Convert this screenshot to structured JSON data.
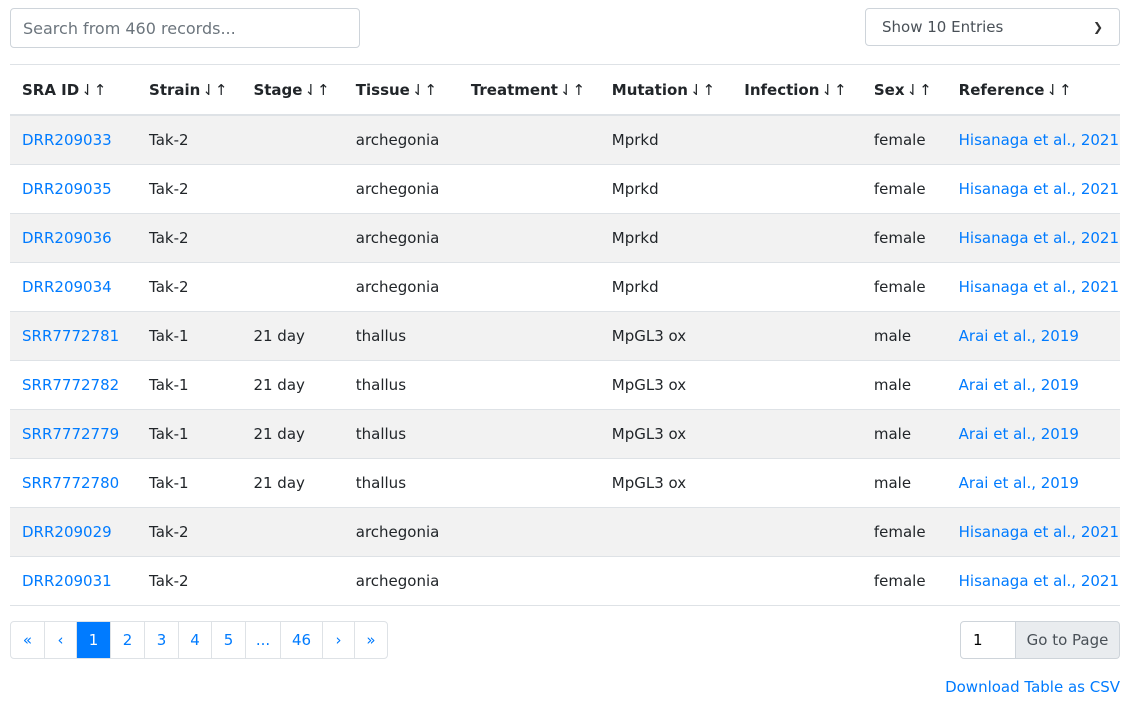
{
  "search": {
    "placeholder": "Search from 460 records..."
  },
  "entries_select": {
    "value": "Show 10 Entries"
  },
  "table": {
    "columns": [
      "SRA ID",
      "Strain",
      "Stage",
      "Tissue",
      "Treatment",
      "Mutation",
      "Infection",
      "Sex",
      "Reference"
    ],
    "sort_icon": "⇃↑",
    "rows": [
      [
        "DRR209033",
        "Tak-2",
        "",
        "archegonia",
        "",
        "Mprkd",
        "",
        "female",
        "Hisanaga et al., 2021"
      ],
      [
        "DRR209035",
        "Tak-2",
        "",
        "archegonia",
        "",
        "Mprkd",
        "",
        "female",
        "Hisanaga et al., 2021"
      ],
      [
        "DRR209036",
        "Tak-2",
        "",
        "archegonia",
        "",
        "Mprkd",
        "",
        "female",
        "Hisanaga et al., 2021"
      ],
      [
        "DRR209034",
        "Tak-2",
        "",
        "archegonia",
        "",
        "Mprkd",
        "",
        "female",
        "Hisanaga et al., 2021"
      ],
      [
        "SRR7772781",
        "Tak-1",
        "21 day",
        "thallus",
        "",
        "MpGL3 ox",
        "",
        "male",
        "Arai et al., 2019"
      ],
      [
        "SRR7772782",
        "Tak-1",
        "21 day",
        "thallus",
        "",
        "MpGL3 ox",
        "",
        "male",
        "Arai et al., 2019"
      ],
      [
        "SRR7772779",
        "Tak-1",
        "21 day",
        "thallus",
        "",
        "MpGL3 ox",
        "",
        "male",
        "Arai et al., 2019"
      ],
      [
        "SRR7772780",
        "Tak-1",
        "21 day",
        "thallus",
        "",
        "MpGL3 ox",
        "",
        "male",
        "Arai et al., 2019"
      ],
      [
        "DRR209029",
        "Tak-2",
        "",
        "archegonia",
        "",
        "",
        "",
        "female",
        "Hisanaga et al., 2021"
      ],
      [
        "DRR209031",
        "Tak-2",
        "",
        "archegonia",
        "",
        "",
        "",
        "female",
        "Hisanaga et al., 2021"
      ]
    ]
  },
  "pagination": {
    "items": [
      "«",
      "‹",
      "1",
      "2",
      "3",
      "4",
      "5",
      "...",
      "46",
      "›",
      "»"
    ],
    "active": "1"
  },
  "goto": {
    "value": "1",
    "button": "Go to Page"
  },
  "download_label": "Download Table as CSV",
  "colors": {
    "link": "#007bff",
    "stripe": "#f2f2f2"
  }
}
